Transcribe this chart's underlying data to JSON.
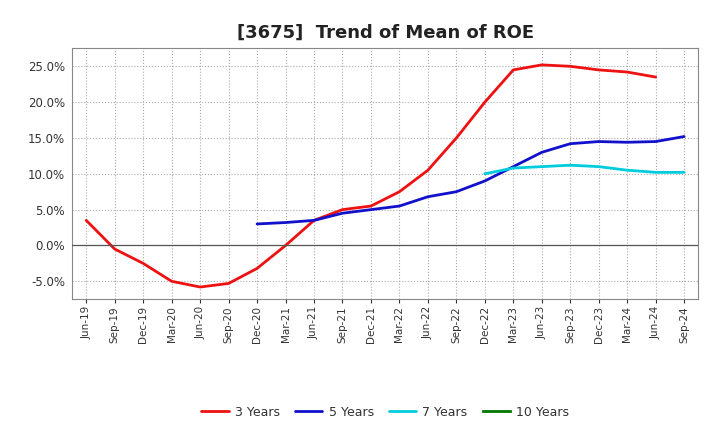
{
  "title": "[3675]  Trend of Mean of ROE",
  "x_labels": [
    "Jun-19",
    "Sep-19",
    "Dec-19",
    "Mar-20",
    "Jun-20",
    "Sep-20",
    "Dec-20",
    "Mar-21",
    "Jun-21",
    "Sep-21",
    "Dec-21",
    "Mar-22",
    "Jun-22",
    "Sep-22",
    "Dec-22",
    "Mar-23",
    "Jun-23",
    "Sep-23",
    "Dec-23",
    "Mar-24",
    "Jun-24",
    "Sep-24"
  ],
  "series_3y": [
    3.5,
    -0.5,
    -2.5,
    -5.0,
    -5.8,
    -5.3,
    -3.2,
    0.0,
    3.5,
    5.0,
    5.5,
    7.5,
    10.5,
    15.0,
    20.0,
    24.5,
    25.2,
    25.0,
    24.5,
    24.2,
    23.5,
    null
  ],
  "series_5y": [
    null,
    null,
    null,
    null,
    null,
    null,
    3.0,
    3.2,
    3.5,
    4.5,
    5.0,
    5.5,
    6.8,
    7.5,
    9.0,
    11.0,
    13.0,
    14.2,
    14.5,
    14.4,
    14.5,
    15.2
  ],
  "series_7y": [
    null,
    null,
    null,
    null,
    null,
    null,
    null,
    null,
    null,
    null,
    null,
    null,
    null,
    null,
    10.0,
    10.8,
    11.0,
    11.2,
    11.0,
    10.5,
    10.2,
    10.2
  ],
  "series_10y": [
    null,
    null,
    null,
    null,
    null,
    null,
    null,
    null,
    null,
    null,
    null,
    null,
    null,
    null,
    null,
    null,
    null,
    null,
    null,
    null,
    null,
    null
  ],
  "colors": {
    "3y": "#ee1111",
    "5y": "#1111cc",
    "7y": "#00ccdd",
    "10y": "#007700"
  },
  "ylim": [
    -7.5,
    27.5
  ],
  "yticks": [
    -5.0,
    0.0,
    5.0,
    10.0,
    15.0,
    20.0,
    25.0
  ],
  "background_color": "#ffffff",
  "grid_color": "#aaaaaa",
  "title_fontsize": 13,
  "legend_labels": [
    "3 Years",
    "5 Years",
    "7 Years",
    "10 Years"
  ]
}
